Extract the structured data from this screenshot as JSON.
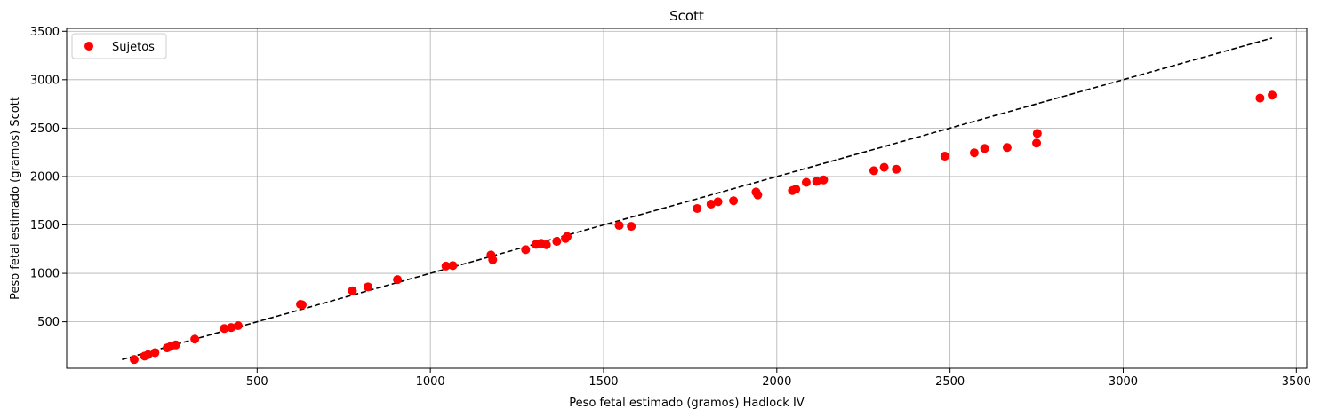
{
  "chart_data": {
    "type": "scatter",
    "title": "Scott",
    "xlabel": "Peso fetal estimado (gramos) Hadlock IV",
    "ylabel": "Peso fetal estimado (gramos) Scott",
    "xlim": [
      -50,
      3530
    ],
    "ylim": [
      20,
      3530
    ],
    "x_ticks": [
      500,
      1000,
      1500,
      2000,
      2500,
      3000,
      3500
    ],
    "y_ticks": [
      500,
      1000,
      1500,
      2000,
      2500,
      3000,
      3500
    ],
    "grid": true,
    "legend_position": "upper-left",
    "series": [
      {
        "name": "Sujetos",
        "kind": "scatter",
        "color": "#ff0000",
        "points": [
          [
            145,
            110
          ],
          [
            175,
            145
          ],
          [
            185,
            160
          ],
          [
            205,
            180
          ],
          [
            240,
            230
          ],
          [
            250,
            245
          ],
          [
            265,
            260
          ],
          [
            320,
            320
          ],
          [
            405,
            430
          ],
          [
            425,
            440
          ],
          [
            445,
            460
          ],
          [
            625,
            680
          ],
          [
            630,
            675
          ],
          [
            775,
            820
          ],
          [
            820,
            860
          ],
          [
            905,
            935
          ],
          [
            1045,
            1075
          ],
          [
            1065,
            1080
          ],
          [
            1175,
            1190
          ],
          [
            1180,
            1140
          ],
          [
            1275,
            1245
          ],
          [
            1305,
            1300
          ],
          [
            1320,
            1310
          ],
          [
            1335,
            1295
          ],
          [
            1365,
            1330
          ],
          [
            1390,
            1360
          ],
          [
            1395,
            1380
          ],
          [
            1545,
            1495
          ],
          [
            1580,
            1485
          ],
          [
            1770,
            1670
          ],
          [
            1810,
            1715
          ],
          [
            1830,
            1740
          ],
          [
            1875,
            1750
          ],
          [
            1940,
            1840
          ],
          [
            1945,
            1810
          ],
          [
            2045,
            1855
          ],
          [
            2055,
            1870
          ],
          [
            2085,
            1940
          ],
          [
            2115,
            1950
          ],
          [
            2135,
            1965
          ],
          [
            2280,
            2060
          ],
          [
            2310,
            2095
          ],
          [
            2345,
            2075
          ],
          [
            2485,
            2210
          ],
          [
            2570,
            2245
          ],
          [
            2600,
            2290
          ],
          [
            2665,
            2300
          ],
          [
            2750,
            2345
          ],
          [
            2752,
            2445
          ],
          [
            3395,
            2810
          ],
          [
            3430,
            2840
          ]
        ]
      },
      {
        "name": "",
        "kind": "line",
        "style": "dashed",
        "color": "#000000",
        "points": [
          [
            110,
            110
          ],
          [
            3430,
            3430
          ]
        ]
      }
    ]
  }
}
